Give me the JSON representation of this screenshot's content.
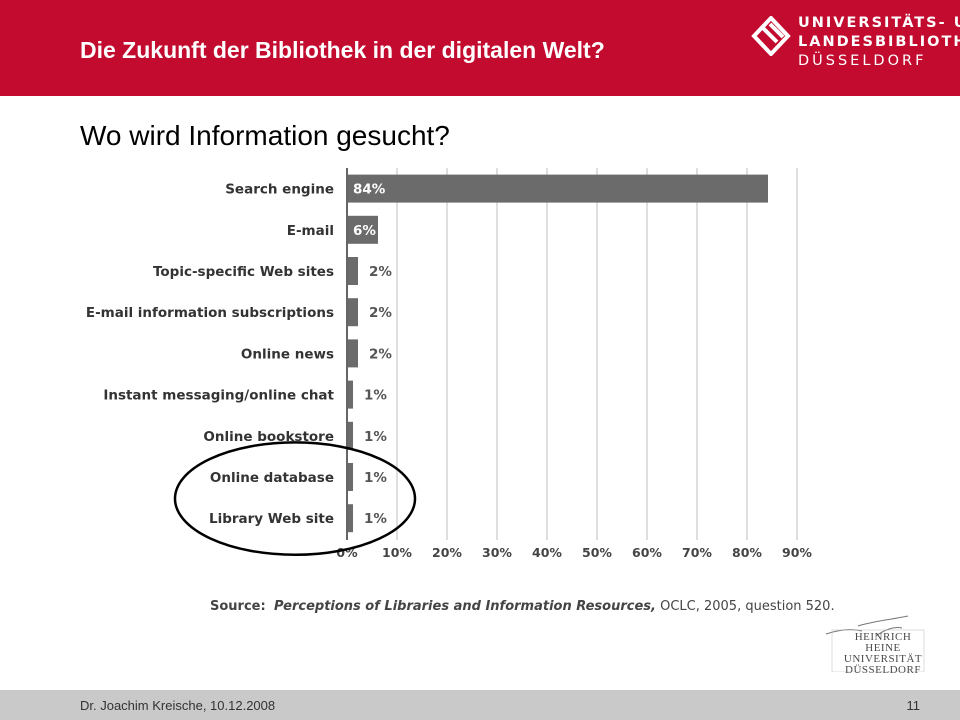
{
  "header": {
    "title": "Die Zukunft der Bibliothek in der digitalen Welt?",
    "bg_color": "#c20b2e",
    "logo": {
      "line1": "UNIVERSITÄTS- UND",
      "line2": "LANDESBIBLIOTHEK",
      "line3": "DÜSSELDORF"
    }
  },
  "slide": {
    "subtitle": "Wo wird Information gesucht?"
  },
  "chart_data": {
    "type": "bar",
    "orientation": "horizontal",
    "categories": [
      "Search engine",
      "E-mail",
      "Topic-specific Web sites",
      "E-mail information subscriptions",
      "Online news",
      "Instant messaging/online chat",
      "Online bookstore",
      "Online database",
      "Library Web site"
    ],
    "values": [
      84,
      6,
      2,
      2,
      2,
      1,
      1,
      1,
      1
    ],
    "labels": [
      "84%",
      "6%",
      "2%",
      "2%",
      "2%",
      "1%",
      "1%",
      "1%",
      "1%"
    ],
    "xticks": [
      "0%",
      "10%",
      "20%",
      "30%",
      "40%",
      "50%",
      "60%",
      "70%",
      "80%",
      "90%"
    ],
    "xlim": [
      0,
      90
    ],
    "grid": true,
    "bar_color": "#6b6b6b",
    "highlighted_categories": [
      "Online database",
      "Library Web site"
    ],
    "source": {
      "label": "Source:",
      "title": "Perceptions of Libraries and Information Resources,",
      "rest": " OCLC, 2005, question 520."
    }
  },
  "hhu_logo": {
    "line1": "HEINRICH HEINE",
    "line2": "UNIVERSITÄT",
    "line3": "DÜSSELDORF"
  },
  "footer": {
    "author": "Dr. Joachim Kreische, 10.12.2008",
    "page": "11"
  }
}
